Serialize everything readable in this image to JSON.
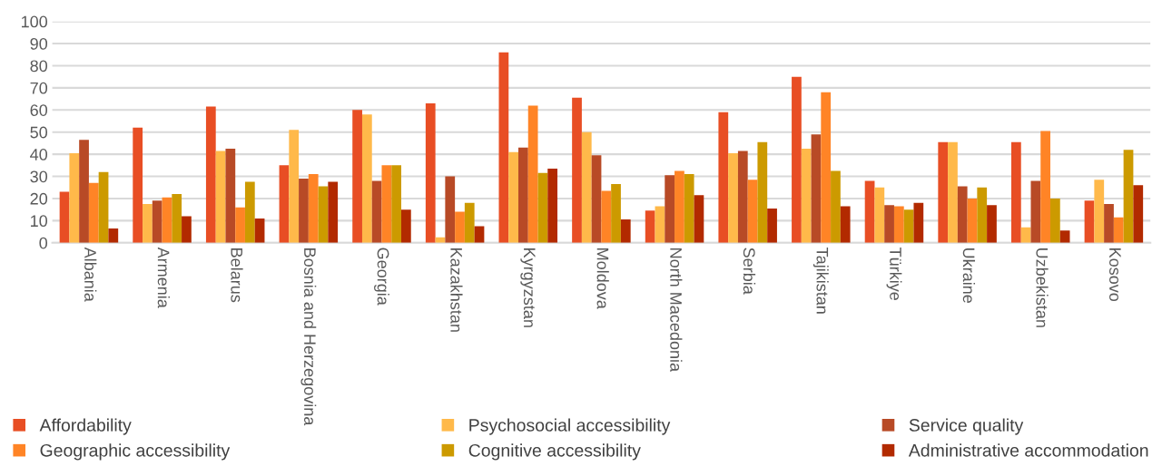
{
  "chart_data": {
    "type": "bar",
    "categories": [
      "Albania",
      "Armenia",
      "Belarus",
      "Bosnia and Herzegovina",
      "Georgia",
      "Kazakhstan",
      "Kyrgyzstan",
      "Moldova",
      "North Macedonia",
      "Serbia",
      "Tajikistan",
      "Türkiye",
      "Ukraine",
      "Uzbekistan",
      "Kosovo"
    ],
    "series": [
      {
        "name": "Affordability",
        "color": "#e84e24",
        "values": [
          23,
          52,
          61.5,
          35,
          60,
          63,
          86,
          65.5,
          14.5,
          59,
          75,
          28,
          45.5,
          45.5,
          19
        ]
      },
      {
        "name": "Psychosocial accessibility",
        "color": "#ffb94a",
        "values": [
          40.5,
          17.5,
          41.5,
          51,
          58,
          2.5,
          41,
          50,
          16.5,
          40.5,
          42.5,
          25,
          45.5,
          7,
          28.5
        ]
      },
      {
        "name": "Service quality",
        "color": "#b84a26",
        "values": [
          46.5,
          19,
          42.5,
          29,
          28,
          30,
          43,
          39.5,
          30.5,
          41.5,
          49,
          17,
          25.5,
          28,
          17.5
        ]
      },
      {
        "name": "Geographic accessibility",
        "color": "#ff8426",
        "values": [
          27,
          20.5,
          16,
          31,
          35,
          14,
          62,
          23.5,
          32.5,
          28.5,
          68,
          16.5,
          20,
          50.5,
          11.5
        ]
      },
      {
        "name": "Cognitive accessibility",
        "color": "#cc9a00",
        "values": [
          32,
          22,
          27.5,
          25.5,
          35,
          18,
          31.5,
          26.5,
          31,
          45.5,
          32.5,
          15,
          25,
          20,
          42
        ]
      },
      {
        "name": "Administrative accommodation",
        "color": "#b22a00",
        "values": [
          6.5,
          12,
          11,
          27.5,
          15,
          7.5,
          33.5,
          10.5,
          21.5,
          15.5,
          16.5,
          18,
          17,
          5.5,
          26
        ]
      }
    ],
    "ylim": [
      0,
      100
    ],
    "yticks": [
      0,
      10,
      20,
      30,
      40,
      50,
      60,
      70,
      80,
      90,
      100
    ],
    "grid": "y",
    "legend": "bottom"
  }
}
